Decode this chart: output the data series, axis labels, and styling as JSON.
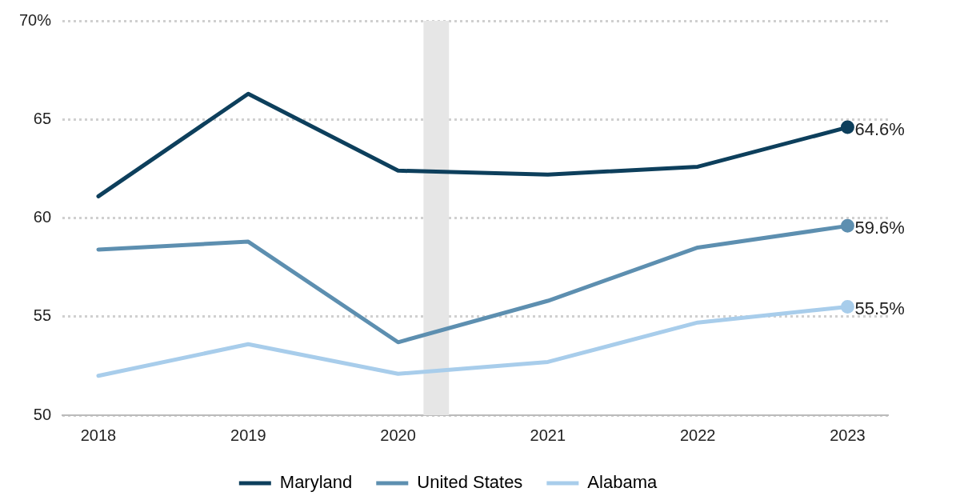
{
  "chart_data": {
    "type": "line",
    "x": [
      2018,
      2019,
      2020,
      2021,
      2022,
      2023
    ],
    "series": [
      {
        "name": "Maryland",
        "color": "#0d3f5c",
        "values": [
          61.1,
          66.3,
          62.4,
          62.2,
          62.6,
          64.6
        ],
        "value_labels": [
          null,
          null,
          null,
          null,
          null,
          "64.6%"
        ]
      },
      {
        "name": "United States",
        "color": "#5d8fb0",
        "values": [
          58.4,
          58.8,
          53.7,
          55.8,
          58.5,
          59.6
        ],
        "value_labels": [
          null,
          null,
          null,
          null,
          null,
          "59.6%"
        ]
      },
      {
        "name": "Alabama",
        "color": "#a8cdeb",
        "values": [
          52.0,
          53.6,
          52.1,
          52.7,
          54.7,
          55.5
        ],
        "value_labels": [
          null,
          null,
          null,
          null,
          null,
          "55.5%"
        ]
      }
    ],
    "xlim": [
      2017.76,
      2023.27
    ],
    "xticks": [
      2018,
      2019,
      2020,
      2021,
      2022,
      2023
    ],
    "ylim": [
      50,
      70
    ],
    "yticks": [
      50,
      55,
      60,
      65,
      {
        "value": 70,
        "label": "70%"
      }
    ],
    "bands": [
      {
        "axis": "x",
        "from": 2020.17,
        "to": 2020.34,
        "color": "#e6e6e6"
      }
    ],
    "grid": "y",
    "legend": "bottom",
    "line_style": "solid"
  }
}
